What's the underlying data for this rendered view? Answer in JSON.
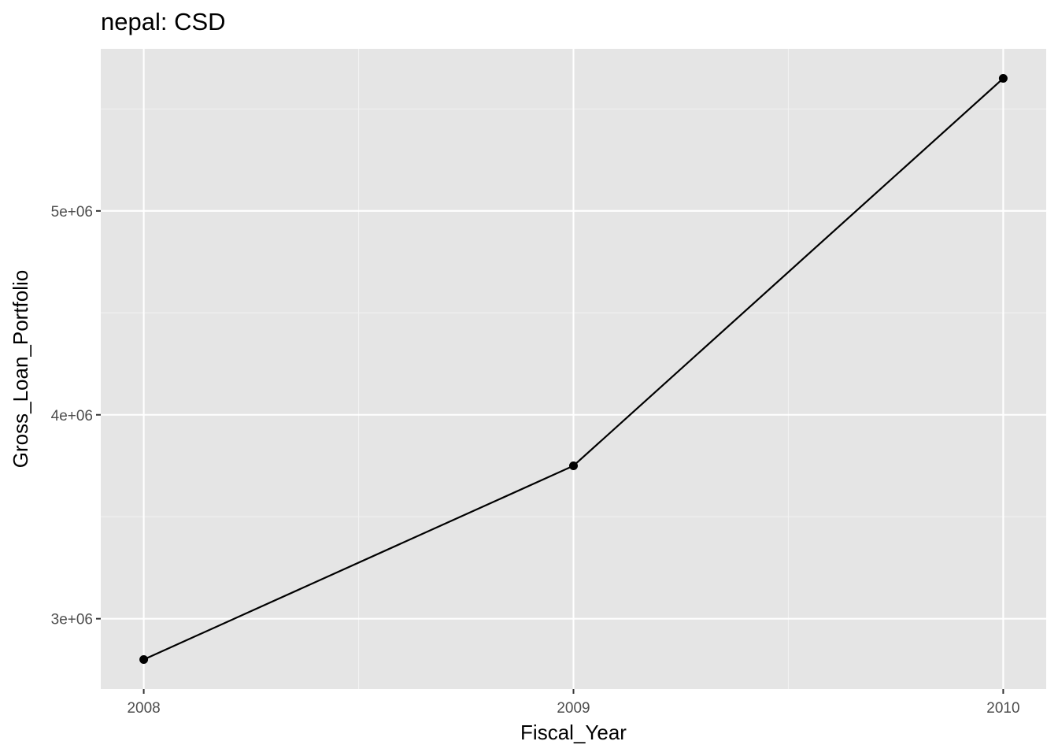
{
  "chart_data": {
    "type": "line",
    "title": "nepal:  CSD",
    "xlabel": "Fiscal_Year",
    "ylabel": "Gross_Loan_Portfolio",
    "x": [
      2008,
      2009,
      2010
    ],
    "series": [
      {
        "values": [
          2800000,
          3750000,
          5650000
        ]
      }
    ],
    "x_ticks": [
      "2008",
      "2009",
      "2010"
    ],
    "y_ticks": [
      {
        "value": 3000000,
        "label": "3e+06"
      },
      {
        "value": 4000000,
        "label": "4e+06"
      },
      {
        "value": 5000000,
        "label": "5e+06"
      }
    ],
    "xlim": [
      2007.9,
      2010.1
    ],
    "ylim": [
      2655000,
      5795000
    ],
    "grid": true,
    "legend": "none",
    "colors": {
      "panel_background": "#e5e5e5",
      "grid_major": "#ffffff",
      "grid_minor": "#f2f2f2",
      "line": "#000000",
      "point": "#000000",
      "tick_text": "#4d4d4d",
      "tick_mark": "#333333"
    }
  }
}
